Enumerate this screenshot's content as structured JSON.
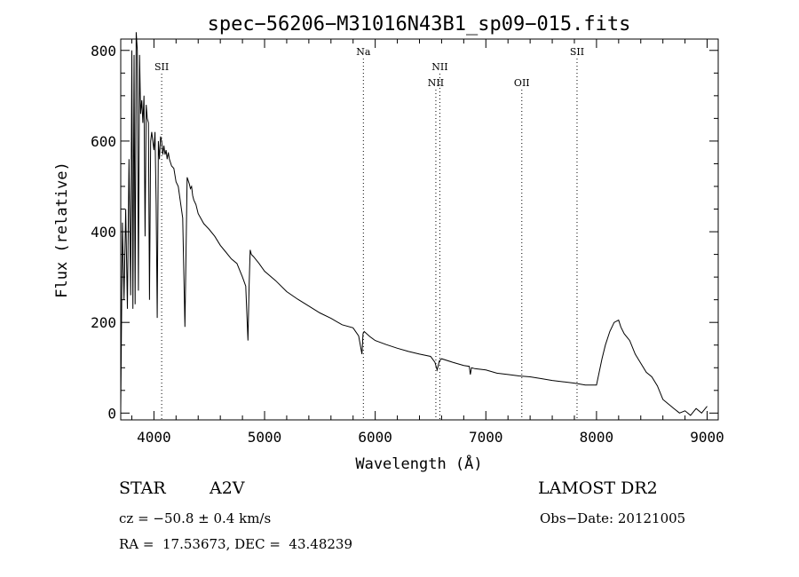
{
  "chart_data": {
    "type": "line",
    "title": "spec−56206−M31016N43B1_sp09−015.fits",
    "xlabel": "Wavelength (Å)",
    "ylabel": "Flux (relative)",
    "xlim": [
      3700,
      9100
    ],
    "ylim": [
      -15,
      825
    ],
    "xticks": [
      4000,
      5000,
      6000,
      7000,
      8000,
      9000
    ],
    "yticks": [
      0,
      200,
      400,
      600,
      800
    ],
    "grid": false,
    "series": [
      {
        "x": [
          3700,
          3715,
          3730,
          3745,
          3760,
          3775,
          3790,
          3800,
          3810,
          3820,
          3830,
          3840,
          3850,
          3860,
          3870,
          3880,
          3890,
          3900,
          3910,
          3920,
          3930,
          3940,
          3950,
          3960,
          3970,
          3980,
          3990,
          4000,
          4010,
          4020,
          4030,
          4040,
          4050,
          4060,
          4070,
          4080,
          4090,
          4100,
          4110,
          4120,
          4130,
          4140,
          4160,
          4180,
          4200,
          4220,
          4240,
          4260,
          4280,
          4300,
          4320,
          4330,
          4340,
          4350,
          4360,
          4380,
          4400,
          4450,
          4500,
          4550,
          4600,
          4650,
          4700,
          4750,
          4800,
          4830,
          4850,
          4860,
          4870,
          4880,
          4900,
          4950,
          5000,
          5100,
          5200,
          5300,
          5400,
          5500,
          5600,
          5700,
          5800,
          5850,
          5880,
          5890,
          5900,
          5950,
          6000,
          6100,
          6200,
          6300,
          6400,
          6500,
          6540,
          6560,
          6580,
          6600,
          6700,
          6800,
          6850,
          6860,
          6870,
          6900,
          7000,
          7100,
          7200,
          7300,
          7400,
          7500,
          7600,
          7700,
          7800,
          7900,
          8000,
          8050,
          8080,
          8120,
          8160,
          8200,
          8220,
          8250,
          8300,
          8350,
          8400,
          8450,
          8500,
          8550,
          8600,
          8650,
          8700,
          8750,
          8800,
          8850,
          8900,
          8950,
          9000
        ],
        "y": [
          10,
          420,
          250,
          450,
          230,
          560,
          260,
          800,
          230,
          790,
          240,
          840,
          800,
          270,
          790,
          660,
          690,
          640,
          700,
          390,
          680,
          650,
          640,
          250,
          600,
          620,
          600,
          580,
          620,
          460,
          210,
          600,
          560,
          610,
          600,
          570,
          590,
          570,
          580,
          560,
          575,
          560,
          545,
          540,
          510,
          500,
          465,
          430,
          190,
          520,
          505,
          495,
          500,
          480,
          470,
          460,
          440,
          418,
          405,
          390,
          370,
          355,
          340,
          330,
          300,
          280,
          160,
          280,
          360,
          350,
          345,
          330,
          313,
          292,
          268,
          251,
          236,
          221,
          209,
          195,
          188,
          170,
          130,
          175,
          180,
          169,
          160,
          151,
          143,
          136,
          130,
          125,
          112,
          95,
          115,
          120,
          112,
          105,
          103,
          85,
          100,
          98,
          95,
          88,
          85,
          82,
          80,
          76,
          72,
          69,
          66,
          62,
          62,
          120,
          150,
          180,
          200,
          205,
          190,
          175,
          160,
          130,
          110,
          90,
          80,
          60,
          30,
          20,
          10,
          0,
          5,
          -5,
          10,
          0,
          15
        ]
      }
    ],
    "annotations": [
      {
        "label": "SII",
        "x": 4070,
        "level": 0
      },
      {
        "label": "Na",
        "x": 5893,
        "level": -1
      },
      {
        "label": "NII",
        "x": 6548,
        "level": 1
      },
      {
        "label": "NII",
        "x": 6584,
        "level": 0
      },
      {
        "label": "OII",
        "x": 7325,
        "level": 1
      },
      {
        "label": "SII",
        "x": 7824,
        "level": -1
      }
    ]
  },
  "info": {
    "object_class": "STAR",
    "subclass": "A2V",
    "survey": "LAMOST DR2",
    "redshift": "cz = −50.8 ± 0.4 km/s",
    "obs_date": "Obs−Date: 20121005",
    "coords": "RA =  17.53673, DEC =  43.48239"
  }
}
